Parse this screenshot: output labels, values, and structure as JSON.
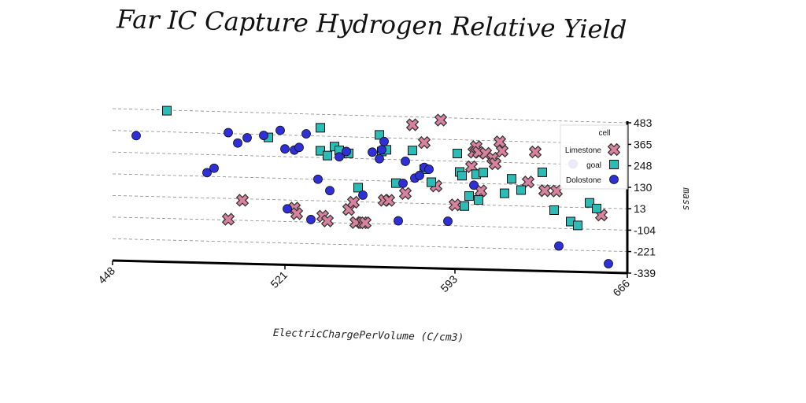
{
  "chart_data": {
    "type": "scatter",
    "title": "Far IC Capture Hydrogen Relative Yield",
    "xlabel": "ElectricChargePerVolume (C/cm3)",
    "ylabel": "mass",
    "xlim": [
      448,
      666
    ],
    "ylim": [
      -339,
      483
    ],
    "x_ticks": [
      "448",
      "521",
      "593",
      "666"
    ],
    "y_ticks": [
      "483",
      "365",
      "248",
      "130",
      "13",
      "-104",
      "-221",
      "-339"
    ],
    "grid": "horizontal dashed",
    "legend": {
      "title": "cell",
      "position": "right"
    },
    "colors": {
      "Limestone": "#d9829e",
      "goal": "#2bbcb8",
      "Dolostone": "#2f2fd8"
    },
    "series": [
      {
        "name": "Limestone",
        "marker": "x",
        "points": [
          [
            497,
            -100
          ],
          [
            503,
            5
          ],
          [
            525,
            -30
          ],
          [
            526,
            -60
          ],
          [
            537,
            -70
          ],
          [
            539,
            -95
          ],
          [
            548,
            -30
          ],
          [
            550,
            10
          ],
          [
            551,
            -100
          ],
          [
            554,
            -100
          ],
          [
            555,
            -100
          ],
          [
            563,
            25
          ],
          [
            565,
            25
          ],
          [
            572,
            65
          ],
          [
            575,
            440
          ],
          [
            580,
            345
          ],
          [
            585,
            110
          ],
          [
            587,
            470
          ],
          [
            593,
            10
          ],
          [
            600,
            220
          ],
          [
            601,
            300
          ],
          [
            602,
            330
          ],
          [
            603,
            300
          ],
          [
            604,
            90
          ],
          [
            606,
            295
          ],
          [
            609,
            270
          ],
          [
            610,
            240
          ],
          [
            612,
            360
          ],
          [
            613,
            310
          ],
          [
            624,
            145
          ],
          [
            627,
            310
          ],
          [
            631,
            100
          ],
          [
            636,
            100
          ],
          [
            655,
            -25
          ]
        ]
      },
      {
        "name": "goal",
        "marker": "s",
        "points": [
          [
            471,
            480
          ],
          [
            514,
            350
          ],
          [
            536,
            410
          ],
          [
            536,
            285
          ],
          [
            539,
            260
          ],
          [
            542,
            310
          ],
          [
            544,
            290
          ],
          [
            548,
            275
          ],
          [
            552,
            90
          ],
          [
            561,
            380
          ],
          [
            562,
            290
          ],
          [
            564,
            300
          ],
          [
            568,
            120
          ],
          [
            575,
            300
          ],
          [
            580,
            200
          ],
          [
            583,
            130
          ],
          [
            594,
            290
          ],
          [
            595,
            190
          ],
          [
            596,
            170
          ],
          [
            597,
            5
          ],
          [
            599,
            60
          ],
          [
            602,
            180
          ],
          [
            603,
            40
          ],
          [
            605,
            190
          ],
          [
            614,
            80
          ],
          [
            617,
            160
          ],
          [
            621,
            100
          ],
          [
            630,
            200
          ],
          [
            635,
            -5
          ],
          [
            642,
            -65
          ],
          [
            645,
            -85
          ],
          [
            650,
            40
          ],
          [
            653,
            10
          ]
        ]
      },
      {
        "name": "Dolostone",
        "marker": "o",
        "points": [
          [
            458,
            340
          ],
          [
            488,
            150
          ],
          [
            491,
            175
          ],
          [
            497,
            370
          ],
          [
            501,
            315
          ],
          [
            505,
            345
          ],
          [
            512,
            360
          ],
          [
            519,
            390
          ],
          [
            521,
            290
          ],
          [
            522,
            -35
          ],
          [
            525,
            285
          ],
          [
            527,
            300
          ],
          [
            530,
            375
          ],
          [
            532,
            -90
          ],
          [
            535,
            130
          ],
          [
            540,
            70
          ],
          [
            544,
            255
          ],
          [
            547,
            285
          ],
          [
            554,
            50
          ],
          [
            558,
            285
          ],
          [
            561,
            250
          ],
          [
            562,
            300
          ],
          [
            563,
            345
          ],
          [
            569,
            -85
          ],
          [
            571,
            120
          ],
          [
            572,
            240
          ],
          [
            576,
            150
          ],
          [
            578,
            165
          ],
          [
            580,
            210
          ],
          [
            582,
            200
          ],
          [
            590,
            -80
          ],
          [
            601,
            120
          ],
          [
            637,
            -200
          ],
          [
            643,
            250
          ],
          [
            658,
            -290
          ]
        ]
      }
    ]
  }
}
